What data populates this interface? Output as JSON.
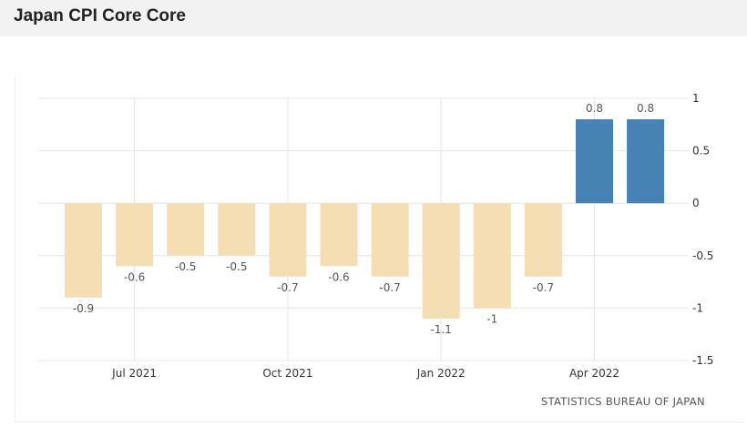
{
  "title": "Japan CPI Core Core",
  "source": "STATISTICS BUREAU OF JAPAN",
  "chart_data": {
    "type": "bar",
    "categories": [
      "Jun 2021",
      "Jul 2021",
      "Aug 2021",
      "Sep 2021",
      "Oct 2021",
      "Nov 2021",
      "Dec 2021",
      "Jan 2022",
      "Feb 2022",
      "Mar 2022",
      "Apr 2022",
      "May 2022"
    ],
    "values": [
      -0.9,
      -0.6,
      -0.5,
      -0.5,
      -0.7,
      -0.6,
      -0.7,
      -1.1,
      -1,
      -0.7,
      0.8,
      0.8
    ],
    "value_labels": [
      "-0.9",
      "-0.6",
      "-0.5",
      "-0.5",
      "-0.7",
      "-0.6",
      "-0.7",
      "-1.1",
      "-1",
      "-0.7",
      "0.8",
      "0.8"
    ],
    "x_tick_labels": [
      {
        "label": "Jul 2021",
        "index": 1
      },
      {
        "label": "Oct 2021",
        "index": 4
      },
      {
        "label": "Jan 2022",
        "index": 7
      },
      {
        "label": "Apr 2022",
        "index": 10
      }
    ],
    "y_ticks": [
      1,
      0.5,
      0,
      -0.5,
      -1,
      -1.5
    ],
    "y_tick_labels": [
      "1",
      "0.5",
      "0",
      "-0.5",
      "-1",
      "-1.5"
    ],
    "ylim": [
      -1.5,
      1
    ],
    "xlabel": "",
    "ylabel": "",
    "grid": true,
    "colors": {
      "negative": "#f5deb3",
      "positive": "#4682b4",
      "grid": "#e6e6e6",
      "label": "#555555"
    }
  }
}
